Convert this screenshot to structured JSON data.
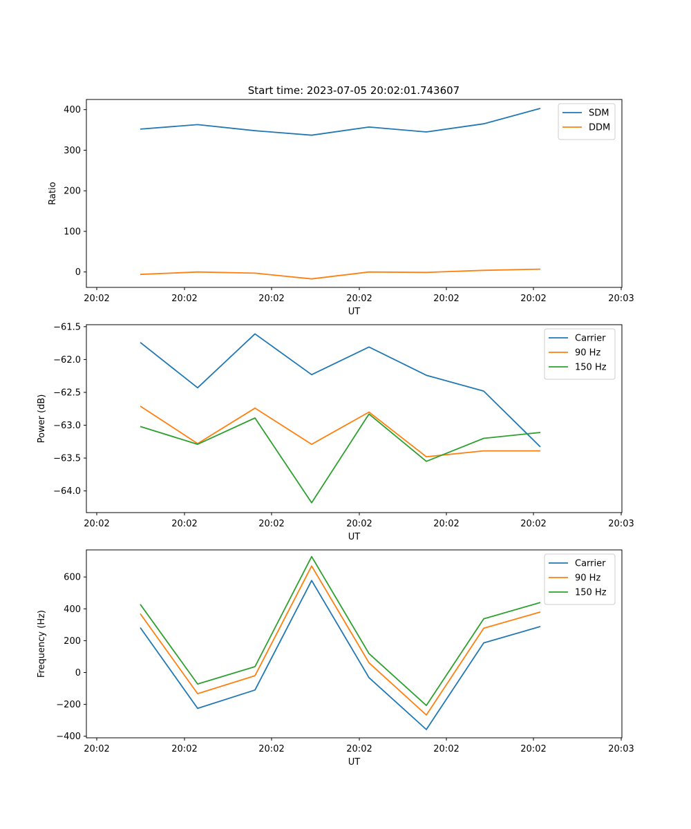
{
  "figure_title": "Start time: 2023-07-05 20:02:01.743607",
  "chart_data": [
    {
      "type": "line",
      "title": "Start time: 2023-07-05 20:02:01.743607",
      "xlabel": "UT",
      "ylabel": "Ratio",
      "x_ticklabels": [
        "20:02",
        "20:02",
        "20:02",
        "20:02",
        "20:02",
        "20:02",
        "20:03"
      ],
      "y_ticks": [
        0,
        100,
        200,
        300,
        400
      ],
      "y_ticklabels": [
        "0",
        "100",
        "200",
        "300",
        "400"
      ],
      "ylim": [
        -38,
        425
      ],
      "legend_position": "top-right",
      "series": [
        {
          "name": "SDM",
          "color": "#1f77b4",
          "values": [
            352,
            363,
            348,
            337,
            357,
            345,
            365,
            403
          ]
        },
        {
          "name": "DDM",
          "color": "#ff7f0e",
          "values": [
            -6,
            0,
            -3,
            -17,
            0,
            -1,
            4,
            7
          ]
        }
      ]
    },
    {
      "type": "line",
      "xlabel": "UT",
      "ylabel": "Power (dB)",
      "x_ticklabels": [
        "20:02",
        "20:02",
        "20:02",
        "20:02",
        "20:02",
        "20:02",
        "20:03"
      ],
      "y_ticks": [
        -64.0,
        -63.5,
        -63.0,
        -62.5,
        -62.0,
        -61.5
      ],
      "y_ticklabels": [
        "−64.0",
        "−63.5",
        "−63.0",
        "−62.5",
        "−62.0",
        "−61.5"
      ],
      "ylim": [
        -64.33,
        -61.47
      ],
      "legend_position": "top-right",
      "series": [
        {
          "name": "Carrier",
          "color": "#1f77b4",
          "values": [
            -61.74,
            -62.43,
            -61.61,
            -62.23,
            -61.81,
            -62.24,
            -62.48,
            -63.33
          ]
        },
        {
          "name": "90 Hz",
          "color": "#ff7f0e",
          "values": [
            -62.71,
            -63.28,
            -62.74,
            -63.29,
            -62.8,
            -63.48,
            -63.39,
            -63.39
          ]
        },
        {
          "name": "150 Hz",
          "color": "#2ca02c",
          "values": [
            -63.02,
            -63.29,
            -62.89,
            -64.18,
            -62.83,
            -63.55,
            -63.2,
            -63.11
          ]
        }
      ]
    },
    {
      "type": "line",
      "xlabel": "UT",
      "ylabel": "Frequency (Hz)",
      "x_ticklabels": [
        "20:02",
        "20:02",
        "20:02",
        "20:02",
        "20:02",
        "20:02",
        "20:03"
      ],
      "y_ticks": [
        -400,
        -200,
        0,
        200,
        400,
        600
      ],
      "y_ticklabels": [
        "−400",
        "−200",
        "0",
        "200",
        "400",
        "600"
      ],
      "ylim": [
        -410,
        770
      ],
      "legend_position": "top-right",
      "series": [
        {
          "name": "Carrier",
          "color": "#1f77b4",
          "values": [
            282,
            -225,
            -110,
            578,
            -32,
            -358,
            186,
            289
          ]
        },
        {
          "name": "90 Hz",
          "color": "#ff7f0e",
          "values": [
            369,
            -133,
            -20,
            669,
            61,
            -267,
            278,
            380
          ]
        },
        {
          "name": "150 Hz",
          "color": "#2ca02c",
          "values": [
            428,
            -72,
            37,
            728,
            119,
            -207,
            337,
            440
          ]
        }
      ]
    }
  ]
}
